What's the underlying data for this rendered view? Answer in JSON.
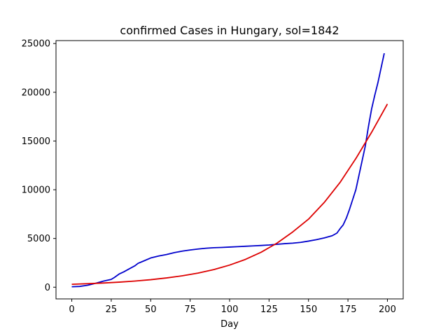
{
  "chart_data": {
    "type": "line",
    "title": "confirmed Cases in Hungary, sol=1842",
    "xlabel": "Day",
    "ylabel": "",
    "xlim": [
      -10,
      210
    ],
    "ylim": [
      -1200,
      25300
    ],
    "xticks": [
      0,
      25,
      50,
      75,
      100,
      125,
      150,
      175,
      200
    ],
    "yticks": [
      0,
      5000,
      10000,
      15000,
      20000,
      25000
    ],
    "grid": false,
    "series": [
      {
        "color": "#0000cc",
        "x": [
          0,
          5,
          10,
          15,
          20,
          25,
          27,
          30,
          33,
          36,
          40,
          42,
          45,
          50,
          55,
          60,
          65,
          70,
          75,
          80,
          85,
          90,
          95,
          100,
          105,
          110,
          115,
          120,
          125,
          130,
          135,
          140,
          145,
          150,
          155,
          160,
          165,
          168,
          170,
          172,
          174,
          176,
          178,
          180,
          182,
          184,
          186,
          188,
          190,
          192,
          194,
          196,
          198
        ],
        "y": [
          50,
          80,
          200,
          400,
          620,
          800,
          1000,
          1350,
          1580,
          1850,
          2200,
          2450,
          2650,
          3000,
          3200,
          3350,
          3550,
          3700,
          3820,
          3920,
          4000,
          4050,
          4080,
          4120,
          4160,
          4200,
          4240,
          4280,
          4330,
          4400,
          4470,
          4520,
          4600,
          4730,
          4880,
          5060,
          5280,
          5550,
          6000,
          6400,
          7100,
          8000,
          9000,
          10000,
          11500,
          13000,
          14500,
          16500,
          18300,
          19700,
          21000,
          22500,
          24000
        ]
      },
      {
        "color": "#dd0000",
        "x": [
          0,
          10,
          20,
          30,
          40,
          50,
          60,
          70,
          80,
          90,
          100,
          110,
          120,
          130,
          140,
          150,
          160,
          170,
          180,
          190,
          200
        ],
        "y": [
          300,
          360,
          430,
          520,
          630,
          770,
          950,
          1170,
          1450,
          1810,
          2270,
          2850,
          3590,
          4520,
          5670,
          6980,
          8700,
          10750,
          13200,
          15900,
          18800
        ]
      }
    ]
  }
}
